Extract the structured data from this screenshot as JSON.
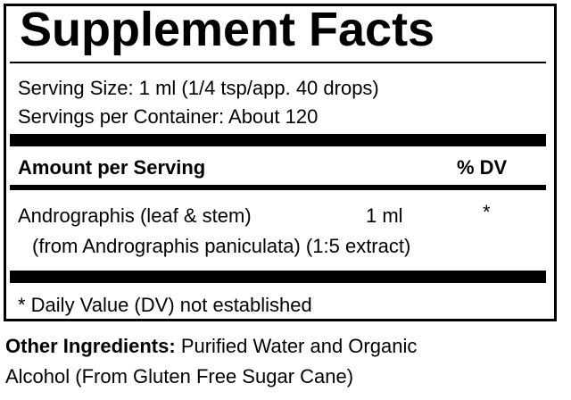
{
  "header": {
    "title": "Supplement Facts"
  },
  "serving": {
    "size": "Serving Size: 1 ml (1/4 tsp/app. 40 drops)",
    "per_container": "Servings per Container: About 120"
  },
  "table": {
    "headers": [
      "Amount per Serving",
      "% DV"
    ],
    "rows": [
      {
        "name": "Andrographis (leaf & stem)",
        "amount": "1 ml",
        "dv": "*",
        "source": "(from Andrographis paniculata) (1:5 extract)"
      }
    ]
  },
  "footnote": "* Daily Value (DV) not established",
  "other": {
    "label": "Other Ingredients:",
    "text": "Purified Water and Organic",
    "text2": "Alcohol (From Gluten Free Sugar Cane)"
  }
}
